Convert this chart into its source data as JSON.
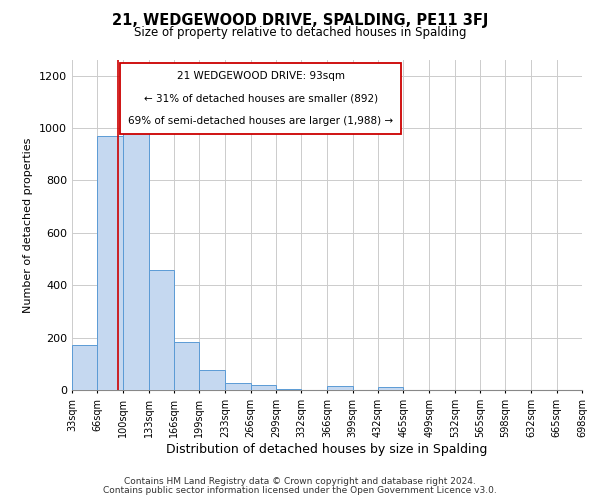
{
  "title": "21, WEDGEWOOD DRIVE, SPALDING, PE11 3FJ",
  "subtitle": "Size of property relative to detached houses in Spalding",
  "xlabel": "Distribution of detached houses by size in Spalding",
  "ylabel": "Number of detached properties",
  "bin_edges": [
    33,
    66,
    100,
    133,
    166,
    199,
    233,
    266,
    299,
    332,
    366,
    399,
    432,
    465,
    499,
    532,
    565,
    598,
    632,
    665,
    698
  ],
  "bar_heights": [
    170,
    970,
    1000,
    460,
    185,
    75,
    25,
    20,
    5,
    0,
    15,
    0,
    10,
    0,
    0,
    0,
    0,
    0,
    0,
    0
  ],
  "bar_color": "#c5d8f0",
  "bar_edge_color": "#5b9bd5",
  "vline_x": 93,
  "vline_color": "#cc0000",
  "annotation_line1": "21 WEDGEWOOD DRIVE: 93sqm",
  "annotation_line2": "← 31% of detached houses are smaller (892)",
  "annotation_line3": "69% of semi-detached houses are larger (1,988) →",
  "ylim": [
    0,
    1260
  ],
  "yticks": [
    0,
    200,
    400,
    600,
    800,
    1000,
    1200
  ],
  "tick_labels": [
    "33sqm",
    "66sqm",
    "100sqm",
    "133sqm",
    "166sqm",
    "199sqm",
    "233sqm",
    "266sqm",
    "299sqm",
    "332sqm",
    "366sqm",
    "399sqm",
    "432sqm",
    "465sqm",
    "499sqm",
    "532sqm",
    "565sqm",
    "598sqm",
    "632sqm",
    "665sqm",
    "698sqm"
  ],
  "footer_line1": "Contains HM Land Registry data © Crown copyright and database right 2024.",
  "footer_line2": "Contains public sector information licensed under the Open Government Licence v3.0.",
  "background_color": "#ffffff",
  "grid_color": "#cccccc",
  "ann_box_color": "#cc0000",
  "ann_box_facecolor": "#ffffff"
}
